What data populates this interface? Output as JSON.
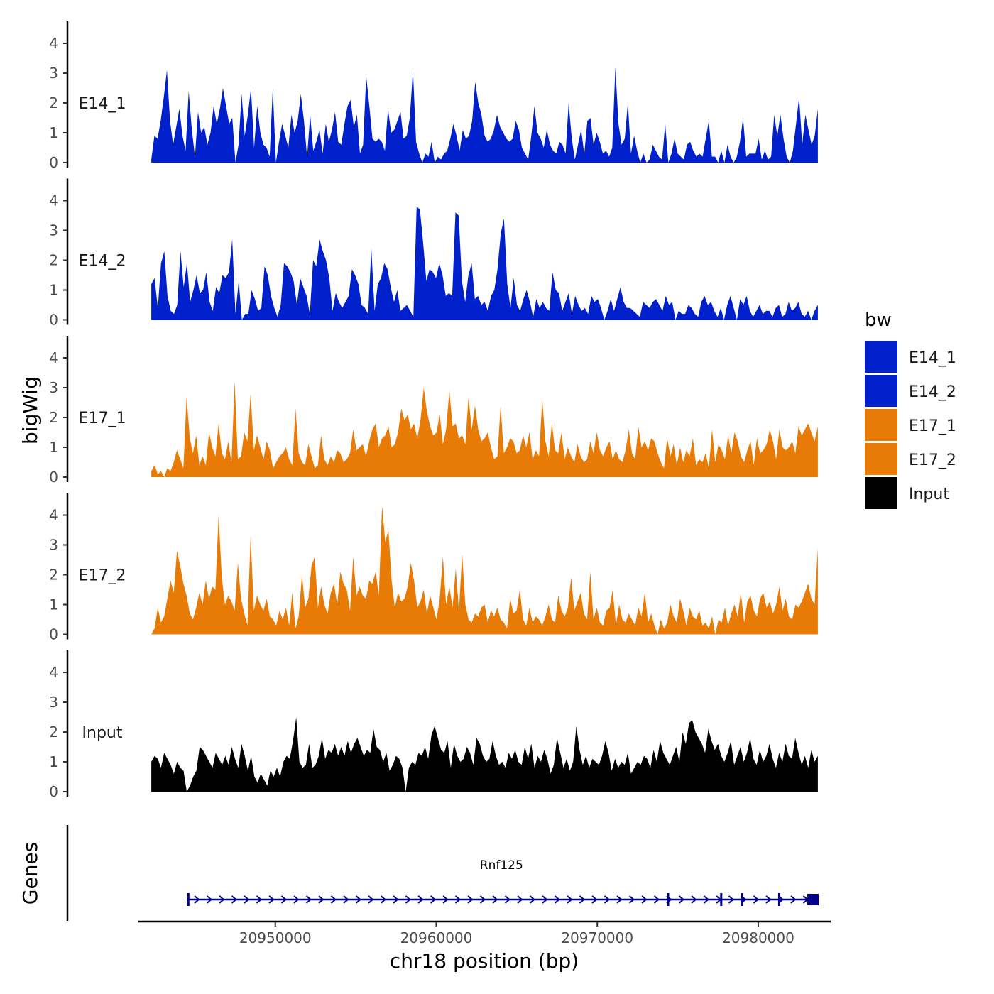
{
  "chart_data": {
    "type": "area",
    "title": "",
    "ylabel": "bigWig",
    "xlabel": "chr18 position (bp)",
    "genes_label": "Genes",
    "xlim": [
      20941500,
      20984500
    ],
    "ylim": [
      0,
      4.5
    ],
    "x_ticks": [
      20950000,
      20960000,
      20970000,
      20980000
    ],
    "x_tick_labels": [
      "20950000",
      "20960000",
      "20970000",
      "20980000"
    ],
    "y_ticks": [
      0,
      1,
      2,
      3,
      4
    ],
    "y_tick_labels": [
      "0",
      "1",
      "2",
      "3",
      "4"
    ],
    "track_range": [
      20942300,
      20983700
    ],
    "colors": {
      "E14": "#0020cc",
      "E17": "#e87a06",
      "Input": "#000000",
      "gene": "#00008b"
    },
    "series": [
      {
        "name": "E14_1",
        "color": "#0020cc",
        "values": [
          0.1,
          0.9,
          0.8,
          1.4,
          2.2,
          3.1,
          1.4,
          0.6,
          1.2,
          1.8,
          0.9,
          0.4,
          2.4,
          1.1,
          0.2,
          1.7,
          1.0,
          1.2,
          0.6,
          1.0,
          1.9,
          1.3,
          1.8,
          2.5,
          1.9,
          1.3,
          1.5,
          0.0,
          0.6,
          2.3,
          0.9,
          1.6,
          2.5,
          0.5,
          1.9,
          1.0,
          0.6,
          0.5,
          0.2,
          2.5,
          0.0,
          0.7,
          1.3,
          0.9,
          0.5,
          1.6,
          1.0,
          1.4,
          2.3,
          1.4,
          0.2,
          1.6,
          0.4,
          0.7,
          1.1,
          0.3,
          1.3,
          0.7,
          1.1,
          1.7,
          0.7,
          0.6,
          1.3,
          1.9,
          2.1,
          1.2,
          1.6,
          0.3,
          0.6,
          2.9,
          1.9,
          0.8,
          0.7,
          0.8,
          0.7,
          0.4,
          1.8,
          1.0,
          1.1,
          1.4,
          1.7,
          0.8,
          0.9,
          1.5,
          3.1,
          0.7,
          0.3,
          0.0,
          0.3,
          0.2,
          0.7,
          0.0,
          0.2,
          0.1,
          0.3,
          0.4,
          0.8,
          1.3,
          0.9,
          0.4,
          1.1,
          0.8,
          0.9,
          1.4,
          2.7,
          2.0,
          1.6,
          0.9,
          0.7,
          0.8,
          1.1,
          1.6,
          1.2,
          1.0,
          0.8,
          0.7,
          0.8,
          1.4,
          1.1,
          0.5,
          0.3,
          0.1,
          0.9,
          1.9,
          1.0,
          0.8,
          0.5,
          1.1,
          0.6,
          0.4,
          0.3,
          0.7,
          0.6,
          0.3,
          2.0,
          0.8,
          0.1,
          0.6,
          1.1,
          0.3,
          1.4,
          1.5,
          0.6,
          1.0,
          0.7,
          0.3,
          0.4,
          0.2,
          0.5,
          3.2,
          1.3,
          0.6,
          0.8,
          2.0,
          0.3,
          0.9,
          0.4,
          0.0,
          0.3,
          0.0,
          0.1,
          0.6,
          0.4,
          0.2,
          0.1,
          1.3,
          0.0,
          0.3,
          0.8,
          0.3,
          0.2,
          0.1,
          0.6,
          0.7,
          0.4,
          0.2,
          0.3,
          0.2,
          0.8,
          1.4,
          0.2,
          0.2,
          0.0,
          0.4,
          0.0,
          0.6,
          0.2,
          0.0,
          0.2,
          0.7,
          1.5,
          0.2,
          0.3,
          0.3,
          0.3,
          0.8,
          0.1,
          0.4,
          0.1,
          0.2,
          1.6,
          0.9,
          1.6,
          0.8,
          0.2,
          0.0,
          0.4,
          1.3,
          2.2,
          0.6,
          1.6,
          1.1,
          0.6,
          0.9,
          1.8
        ]
      },
      {
        "name": "E14_2",
        "color": "#0020cc",
        "values": [
          1.2,
          1.4,
          0.4,
          1.9,
          2.3,
          0.8,
          0.3,
          0.2,
          0.5,
          2.3,
          1.1,
          1.9,
          0.6,
          1.0,
          1.5,
          0.9,
          1.0,
          1.6,
          0.6,
          0.3,
          1.1,
          0.9,
          1.5,
          1.4,
          1.6,
          2.7,
          0.2,
          1.3,
          0.0,
          0.2,
          0.2,
          1.0,
          0.7,
          0.3,
          0.4,
          1.8,
          1.5,
          0.8,
          0.4,
          0.1,
          0.5,
          1.9,
          1.8,
          1.6,
          1.3,
          0.5,
          1.4,
          1.1,
          0.8,
          0.2,
          2.0,
          1.8,
          2.7,
          2.3,
          2.0,
          1.4,
          0.3,
          0.9,
          0.6,
          0.4,
          0.6,
          0.8,
          1.7,
          1.5,
          1.2,
          0.5,
          0.4,
          0.2,
          2.4,
          0.3,
          1.2,
          1.4,
          1.9,
          1.7,
          1.1,
          0.6,
          1.0,
          0.3,
          0.4,
          0.5,
          0.3,
          0.1,
          3.8,
          3.7,
          2.6,
          1.3,
          1.7,
          1.6,
          1.4,
          1.9,
          1.5,
          0.8,
          0.9,
          0.8,
          3.6,
          3.5,
          1.3,
          0.6,
          1.5,
          1.9,
          0.7,
          0.8,
          0.5,
          0.6,
          0.3,
          0.8,
          1.0,
          1.7,
          2.9,
          3.4,
          1.2,
          0.4,
          1.4,
          0.5,
          0.3,
          0.7,
          1.0,
          0.6,
          0.1,
          0.7,
          0.4,
          0.6,
          0.4,
          0.3,
          1.6,
          1.0,
          0.9,
          0.3,
          0.6,
          0.9,
          0.2,
          0.8,
          0.5,
          0.3,
          0.4,
          0.2,
          0.8,
          0.6,
          0.7,
          0.4,
          0.0,
          0.3,
          0.7,
          0.3,
          0.7,
          1.1,
          0.6,
          0.4,
          0.4,
          0.3,
          0.2,
          0.1,
          0.6,
          0.5,
          0.4,
          0.6,
          0.7,
          0.5,
          0.3,
          0.8,
          0.5,
          0.6,
          0.0,
          0.3,
          0.2,
          0.2,
          0.5,
          0.4,
          0.2,
          0.1,
          0.6,
          0.8,
          0.5,
          0.6,
          0.3,
          0.1,
          0.4,
          0.0,
          0.5,
          0.8,
          0.4,
          0.0,
          0.7,
          0.5,
          0.8,
          0.3,
          0.1,
          0.3,
          0.5,
          0.2,
          0.3,
          0.3,
          0.1,
          0.4,
          0.5,
          0.1,
          0.2,
          0.6,
          0.3,
          0.4,
          0.6,
          0.2,
          0.1,
          0.3,
          0.0,
          0.3,
          0.5
        ]
      },
      {
        "name": "E17_1",
        "color": "#e87a06",
        "values": [
          0.2,
          0.4,
          0.1,
          0.2,
          0.0,
          0.3,
          0.2,
          0.5,
          0.9,
          0.6,
          0.3,
          2.7,
          1.3,
          0.8,
          1.4,
          0.4,
          0.7,
          0.4,
          1.5,
          1.0,
          0.7,
          1.8,
          0.8,
          0.6,
          1.2,
          0.5,
          3.2,
          0.6,
          0.7,
          1.5,
          1.2,
          2.8,
          0.9,
          1.4,
          1.0,
          0.6,
          1.2,
          0.9,
          0.3,
          0.5,
          0.7,
          0.8,
          1.0,
          0.6,
          0.4,
          2.3,
          0.8,
          0.5,
          0.4,
          1.1,
          0.7,
          0.3,
          0.4,
          1.4,
          0.6,
          0.4,
          0.7,
          0.5,
          0.9,
          0.8,
          0.5,
          0.6,
          0.8,
          1.6,
          0.9,
          1.0,
          1.1,
          0.7,
          1.2,
          1.6,
          1.8,
          1.0,
          1.3,
          1.4,
          1.7,
          1.0,
          1.1,
          1.5,
          2.3,
          1.9,
          2.1,
          1.6,
          1.8,
          1.3,
          1.9,
          3.0,
          2.2,
          1.7,
          1.4,
          1.5,
          2.1,
          1.1,
          1.6,
          2.9,
          1.7,
          1.8,
          1.3,
          1.4,
          1.1,
          2.7,
          1.6,
          2.4,
          1.6,
          1.2,
          1.3,
          1.5,
          1.0,
          0.6,
          0.7,
          2.4,
          0.8,
          1.0,
          1.3,
          1.2,
          0.8,
          0.9,
          1.4,
          1.0,
          1.5,
          0.6,
          0.9,
          0.7,
          2.6,
          1.2,
          0.7,
          1.8,
          0.9,
          0.8,
          1.5,
          0.6,
          1.0,
          0.7,
          0.5,
          1.1,
          0.7,
          0.5,
          0.6,
          1.2,
          0.8,
          1.5,
          0.9,
          0.7,
          1.0,
          1.2,
          0.6,
          0.9,
          0.6,
          0.5,
          0.9,
          1.6,
          0.8,
          0.6,
          1.7,
          1.0,
          1.2,
          0.9,
          1.3,
          1.2,
          0.8,
          0.5,
          0.3,
          1.3,
          0.7,
          1.1,
          0.4,
          1.0,
          0.5,
          0.9,
          0.7,
          1.3,
          0.4,
          0.6,
          0.5,
          0.8,
          0.3,
          1.6,
          0.5,
          1.1,
          0.9,
          0.6,
          1.4,
          0.8,
          1.5,
          1.2,
          0.7,
          0.5,
          0.9,
          1.2,
          0.4,
          1.3,
          0.8,
          0.9,
          1.1,
          1.6,
          1.2,
          0.6,
          1.6,
          1.0,
          0.9,
          1.0,
          1.2,
          0.8,
          1.7,
          1.4,
          1.6,
          1.8,
          1.5,
          1.2,
          1.7
        ]
      },
      {
        "name": "E17_2",
        "color": "#e87a06",
        "values": [
          0.0,
          0.2,
          0.9,
          0.4,
          0.6,
          1.2,
          1.8,
          1.4,
          2.8,
          2.3,
          1.7,
          1.3,
          0.7,
          0.5,
          0.9,
          1.4,
          1.0,
          1.8,
          1.2,
          1.6,
          1.5,
          4.0,
          1.9,
          1.0,
          1.3,
          1.1,
          0.8,
          2.4,
          1.2,
          0.7,
          0.3,
          3.3,
          0.8,
          1.3,
          1.0,
          0.8,
          1.2,
          0.6,
          0.5,
          0.3,
          0.8,
          0.5,
          0.9,
          0.3,
          1.4,
          0.2,
          0.6,
          2.0,
          0.9,
          1.2,
          2.3,
          2.6,
          0.9,
          1.6,
          1.0,
          0.7,
          1.4,
          1.7,
          1.0,
          2.1,
          1.7,
          1.5,
          0.8,
          2.6,
          1.3,
          1.6,
          1.3,
          1.2,
          1.8,
          1.7,
          2.1,
          1.3,
          4.3,
          3.1,
          3.5,
          1.8,
          0.9,
          1.4,
          1.1,
          1.2,
          1.6,
          2.4,
          1.8,
          0.9,
          1.1,
          1.5,
          0.7,
          1.3,
          0.9,
          0.5,
          1.2,
          2.6,
          1.0,
          1.6,
          0.9,
          2.2,
          0.8,
          2.7,
          1.0,
          0.5,
          0.4,
          0.7,
          0.6,
          0.9,
          1.0,
          0.4,
          0.8,
          0.6,
          0.9,
          0.5,
          0.4,
          0.2,
          1.2,
          0.7,
          0.8,
          1.5,
          0.5,
          0.3,
          0.9,
          0.4,
          0.6,
          0.5,
          0.3,
          0.6,
          1.0,
          0.5,
          0.4,
          1.3,
          0.8,
          0.6,
          0.9,
          1.9,
          0.8,
          1.1,
          1.4,
          0.7,
          0.5,
          2.1,
          0.5,
          0.9,
          0.4,
          0.3,
          0.8,
          0.9,
          1.5,
          0.3,
          1.0,
          0.5,
          0.4,
          0.7,
          0.5,
          0.3,
          0.9,
          0.6,
          1.4,
          0.4,
          0.7,
          0.3,
          0.0,
          0.5,
          0.2,
          0.4,
          1.0,
          0.6,
          0.4,
          1.2,
          0.8,
          0.3,
          0.9,
          0.6,
          0.5,
          0.8,
          0.3,
          0.4,
          0.2,
          0.6,
          0.0,
          0.5,
          0.4,
          0.9,
          0.3,
          0.7,
          1.0,
          0.6,
          1.4,
          0.4,
          1.1,
          1.3,
          0.8,
          0.6,
          1.2,
          1.4,
          0.9,
          1.1,
          0.7,
          1.0,
          1.6,
          0.8,
          1.2,
          0.6,
          0.5,
          1.0,
          0.9,
          1.1,
          1.4,
          1.7,
          1.2,
          1.0,
          2.9
        ]
      },
      {
        "name": "Input",
        "color": "#000000",
        "values": [
          1.0,
          1.2,
          1.1,
          0.8,
          1.3,
          1.1,
          0.9,
          0.6,
          1.0,
          0.8,
          0.7,
          0.0,
          0.2,
          0.5,
          0.7,
          1.5,
          1.4,
          1.2,
          1.0,
          0.8,
          1.3,
          1.1,
          0.9,
          1.2,
          0.9,
          1.5,
          1.1,
          0.8,
          1.6,
          1.2,
          0.7,
          1.2,
          0.5,
          0.3,
          0.6,
          0.4,
          0.2,
          0.7,
          0.5,
          0.8,
          0.5,
          1.0,
          1.2,
          1.1,
          1.7,
          2.5,
          1.0,
          0.8,
          0.9,
          1.6,
          0.8,
          0.9,
          1.2,
          1.8,
          1.1,
          1.4,
          1.3,
          1.6,
          1.2,
          1.5,
          1.2,
          1.7,
          1.3,
          1.6,
          1.8,
          1.5,
          1.2,
          1.4,
          1.3,
          2.1,
          1.5,
          1.4,
          1.0,
          1.3,
          0.7,
          0.9,
          1.2,
          1.1,
          0.8,
          0.0,
          0.8,
          1.0,
          0.9,
          1.3,
          1.2,
          1.5,
          1.1,
          1.9,
          2.2,
          1.8,
          1.4,
          1.3,
          1.7,
          0.8,
          1.6,
          1.2,
          1.0,
          1.1,
          1.5,
          1.3,
          0.9,
          1.8,
          1.6,
          1.2,
          1.0,
          1.1,
          1.7,
          1.2,
          0.9,
          1.0,
          0.8,
          1.3,
          1.1,
          1.4,
          1.0,
          0.9,
          1.5,
          1.1,
          1.6,
          0.8,
          1.2,
          1.0,
          1.4,
          1.1,
          0.6,
          0.9,
          1.8,
          1.3,
          0.8,
          1.1,
          0.7,
          1.0,
          2.2,
          1.4,
          0.9,
          1.2,
          0.8,
          1.1,
          1.0,
          0.9,
          1.2,
          1.7,
          1.3,
          0.7,
          1.1,
          0.8,
          1.0,
          0.9,
          1.3,
          0.6,
          0.8,
          1.0,
          0.9,
          1.2,
          1.1,
          0.8,
          1.4,
          1.0,
          1.7,
          1.3,
          1.1,
          0.9,
          1.2,
          1.5,
          1.0,
          2.0,
          1.6,
          2.3,
          2.4,
          2.0,
          1.8,
          1.6,
          1.3,
          2.1,
          1.7,
          1.4,
          1.6,
          1.2,
          1.0,
          1.3,
          1.7,
          0.9,
          1.2,
          1.5,
          1.0,
          1.3,
          1.8,
          1.1,
          0.9,
          1.4,
          1.0,
          1.2,
          1.6,
          1.1,
          0.8,
          1.3,
          1.0,
          1.6,
          1.2,
          1.1,
          1.8,
          1.3,
          0.9,
          1.2,
          0.8,
          1.4,
          1.0,
          1.2
        ]
      }
    ],
    "legend": {
      "title": "bw",
      "position": "right",
      "entries": [
        {
          "label": "E14_1",
          "color": "#0020cc"
        },
        {
          "label": "E14_2",
          "color": "#0020cc"
        },
        {
          "label": "E17_1",
          "color": "#e87a06"
        },
        {
          "label": "E17_2",
          "color": "#e87a06"
        },
        {
          "label": "Input",
          "color": "#000000"
        }
      ]
    },
    "gene": {
      "name": "Rnf125",
      "start": 20944500,
      "end": 20983600,
      "strand": "+",
      "exons": [
        20944600,
        20974400,
        20977700,
        20979000,
        20981300,
        20983400
      ],
      "color": "#00008b"
    }
  }
}
